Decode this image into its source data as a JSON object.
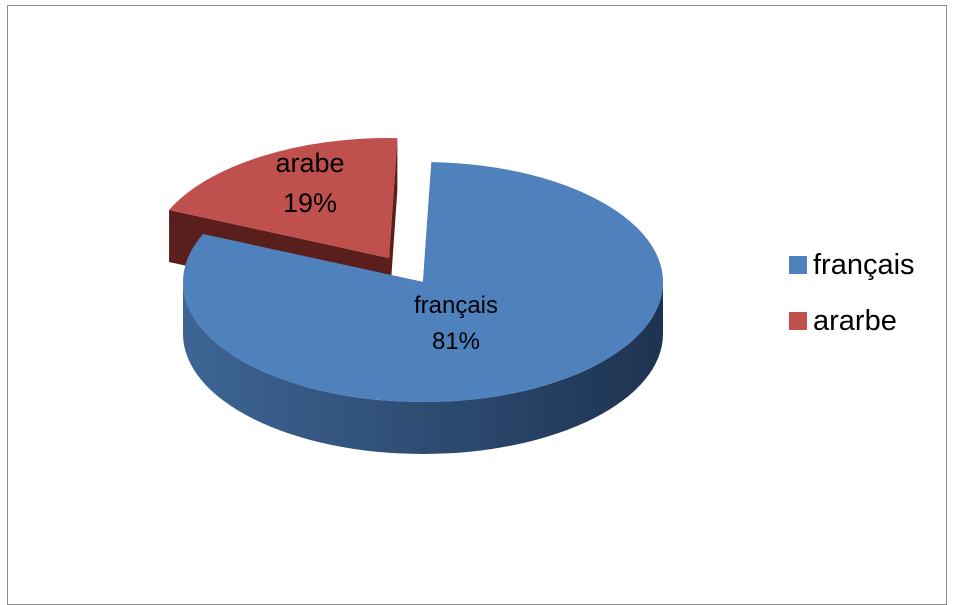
{
  "chart_data": {
    "type": "pie",
    "style": "3d-exploded",
    "title": "",
    "slices": [
      {
        "category": "français",
        "value": 81,
        "label": "français",
        "percent_label": "81%",
        "color": "#4f81bd",
        "side_color": "#2c4a70"
      },
      {
        "category": "arabe",
        "value": 19,
        "label": "arabe",
        "percent_label": "19%",
        "color": "#c0504d",
        "side_color": "#5a1f1d"
      }
    ],
    "legend": {
      "position": "right",
      "entries": [
        {
          "label": "français",
          "color": "#4f81bd"
        },
        {
          "label": "ararbe",
          "color": "#c0504d"
        }
      ]
    }
  }
}
